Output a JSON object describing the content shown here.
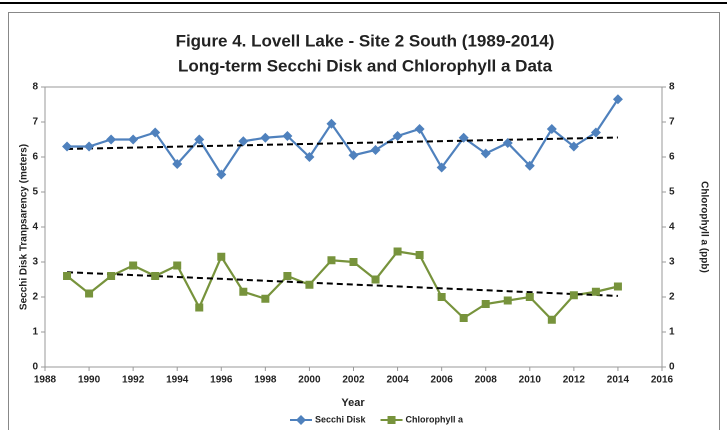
{
  "chart_data": {
    "type": "line",
    "title": [
      "Figure 4. Lovell Lake - Site 2 South (1989-2014)",
      "Long-term Secchi Disk and Chlorophyll a Data"
    ],
    "x_label": "Year",
    "y_label": "Secchi Disk Tranpsarency (meters)",
    "y2_label": "Chlorophyll a (ppb)",
    "x": [
      1989,
      1990,
      1991,
      1992,
      1993,
      1994,
      1995,
      1996,
      1997,
      1998,
      1999,
      2000,
      2001,
      2002,
      2003,
      2004,
      2005,
      2006,
      2007,
      2008,
      2009,
      2010,
      2011,
      2012,
      2013,
      2014
    ],
    "series": [
      {
        "name": "Secchi Disk",
        "color": "#4f81bd",
        "marker": "diamond",
        "trendline": true,
        "values": [
          6.3,
          6.3,
          6.5,
          6.5,
          6.7,
          5.8,
          6.5,
          5.5,
          6.45,
          6.55,
          6.6,
          6.0,
          6.95,
          6.05,
          6.2,
          6.6,
          6.8,
          5.7,
          6.55,
          6.1,
          6.4,
          5.75,
          6.8,
          6.3,
          6.7,
          7.65
        ]
      },
      {
        "name": "Chlorophyll a",
        "color": "#77933c",
        "marker": "square",
        "axis": "y2",
        "trendline": true,
        "values": [
          2.6,
          2.1,
          2.6,
          2.9,
          2.6,
          2.9,
          1.7,
          3.15,
          2.15,
          1.95,
          2.6,
          2.35,
          3.05,
          3.0,
          2.5,
          3.3,
          3.2,
          2.0,
          1.4,
          1.8,
          1.9,
          2.0,
          1.35,
          2.05,
          2.15,
          2.3
        ]
      }
    ],
    "xlim": [
      1988,
      2016
    ],
    "xticks": [
      1988,
      1990,
      1992,
      1994,
      1996,
      1998,
      2000,
      2002,
      2004,
      2006,
      2008,
      2010,
      2012,
      2014,
      2016
    ],
    "ylim": [
      0,
      8
    ],
    "yticks": [
      0,
      1,
      2,
      3,
      4,
      5,
      6,
      7,
      8
    ],
    "y2lim": [
      0,
      8
    ],
    "y2ticks": [
      0,
      1,
      2,
      3,
      4,
      5,
      6,
      7,
      8
    ],
    "grid": false,
    "legend": "bottom"
  }
}
